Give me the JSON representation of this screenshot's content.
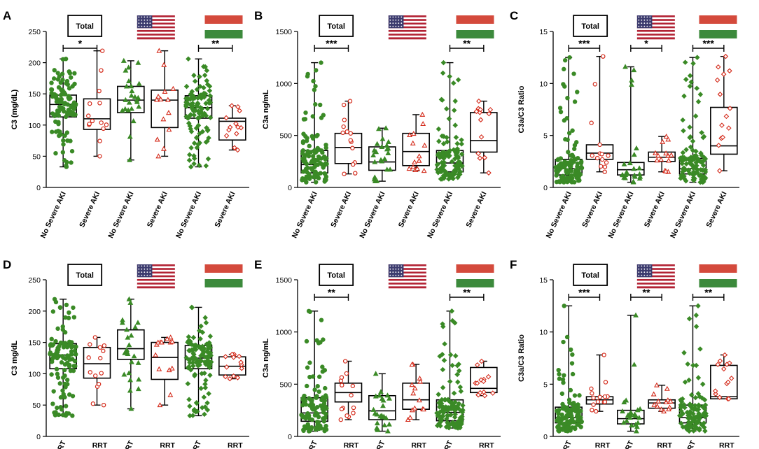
{
  "chart_data": [
    {
      "type": "box",
      "panel": "A",
      "ylabel": "C3 (mg/dL)",
      "ylim": [
        0,
        250
      ],
      "yticks": [
        0,
        50,
        100,
        150,
        200,
        250
      ],
      "categories": [
        "No Severe AKI",
        "Severe AKI",
        "No Severe AKI",
        "Severe AKI",
        "No Severe AKI",
        "Severe AKI"
      ],
      "groups": [
        "Total",
        "US",
        "Hungary"
      ],
      "boxes": [
        {
          "min": 33,
          "q1": 113,
          "median": 133,
          "q3": 148,
          "max": 206
        },
        {
          "min": 50,
          "q1": 93,
          "median": 110,
          "q3": 142,
          "max": 219
        },
        {
          "min": 44,
          "q1": 120,
          "median": 140,
          "q3": 162,
          "max": 203
        },
        {
          "min": 50,
          "q1": 96,
          "median": 140,
          "q3": 156,
          "max": 219
        },
        {
          "min": 33,
          "q1": 111,
          "median": 128,
          "q3": 147,
          "max": 206
        },
        {
          "min": 60,
          "q1": 76,
          "median": 106,
          "q3": 111,
          "max": 131
        }
      ],
      "significance": [
        {
          "from": 0,
          "to": 1,
          "label": "*"
        },
        {
          "from": 4,
          "to": 5,
          "label": "**"
        }
      ]
    },
    {
      "type": "box",
      "panel": "B",
      "ylabel": "C3a ng/mL",
      "ylim": [
        0,
        1500
      ],
      "yticks": [
        0,
        500,
        1000,
        1500
      ],
      "categories": [
        "No Severe AKI",
        "Severe AKI",
        "No Severe AKI",
        "Severe AKI",
        "No Severe AKI",
        "Severe AKI"
      ],
      "groups": [
        "Total",
        "US",
        "Hungary"
      ],
      "boxes": [
        {
          "min": 50,
          "q1": 140,
          "median": 220,
          "q3": 355,
          "max": 1200
        },
        {
          "min": 130,
          "q1": 230,
          "median": 385,
          "q3": 520,
          "max": 830
        },
        {
          "min": 60,
          "q1": 165,
          "median": 245,
          "q3": 390,
          "max": 570
        },
        {
          "min": 160,
          "q1": 210,
          "median": 345,
          "q3": 520,
          "max": 700
        },
        {
          "min": 80,
          "q1": 150,
          "median": 235,
          "q3": 355,
          "max": 1200
        },
        {
          "min": 140,
          "q1": 340,
          "median": 450,
          "q3": 720,
          "max": 830
        }
      ],
      "significance": [
        {
          "from": 0,
          "to": 1,
          "label": "***"
        },
        {
          "from": 4,
          "to": 5,
          "label": "**"
        }
      ]
    },
    {
      "type": "box",
      "panel": "C",
      "ylabel": "C3a/C3 Ratio",
      "ylim": [
        0,
        15
      ],
      "yticks": [
        0,
        5,
        10,
        15
      ],
      "categories": [
        "No Severe AKI",
        "Severe AKI",
        "No Severe AKI",
        "Severe AKI",
        "No Severe AKI",
        "Severe AKI"
      ],
      "groups": [
        "Total",
        "US",
        "Hungary"
      ],
      "boxes": [
        {
          "min": 0.5,
          "q1": 1.2,
          "median": 1.8,
          "q3": 2.7,
          "max": 12.5
        },
        {
          "min": 1.5,
          "q1": 2.7,
          "median": 3.3,
          "q3": 4.1,
          "max": 12.6
        },
        {
          "min": 0.5,
          "q1": 1.2,
          "median": 1.7,
          "q3": 2.4,
          "max": 11.6
        },
        {
          "min": 1.5,
          "q1": 2.5,
          "median": 2.9,
          "q3": 3.4,
          "max": 4.9
        },
        {
          "min": 0.5,
          "q1": 1.3,
          "median": 1.8,
          "q3": 2.8,
          "max": 12.5
        },
        {
          "min": 1.6,
          "q1": 3.2,
          "median": 4.0,
          "q3": 7.7,
          "max": 12.6
        }
      ],
      "significance": [
        {
          "from": 0,
          "to": 1,
          "label": "***"
        },
        {
          "from": 2,
          "to": 3,
          "label": "*"
        },
        {
          "from": 4,
          "to": 5,
          "label": "***"
        }
      ]
    },
    {
      "type": "box",
      "panel": "D",
      "ylabel": "C3 mg/dL",
      "ylim": [
        0,
        250
      ],
      "yticks": [
        0,
        50,
        100,
        150,
        200,
        250
      ],
      "categories": [
        "No RRT",
        "RRT",
        "No RRT",
        "RRT",
        "No RRT",
        "RRT"
      ],
      "groups": [
        "Total",
        "US",
        "Hungary"
      ],
      "boxes": [
        {
          "min": 33,
          "q1": 108,
          "median": 130,
          "q3": 148,
          "max": 219
        },
        {
          "min": 50,
          "q1": 93,
          "median": 116,
          "q3": 142,
          "max": 158
        },
        {
          "min": 44,
          "q1": 123,
          "median": 140,
          "q3": 170,
          "max": 219
        },
        {
          "min": 50,
          "q1": 91,
          "median": 126,
          "q3": 150,
          "max": 158
        },
        {
          "min": 33,
          "q1": 108,
          "median": 125,
          "q3": 145,
          "max": 206
        },
        {
          "min": 92,
          "q1": 98,
          "median": 112,
          "q3": 127,
          "max": 131
        }
      ],
      "significance": []
    },
    {
      "type": "box",
      "panel": "E",
      "ylabel": "C3a ng/mL",
      "ylim": [
        0,
        1500
      ],
      "yticks": [
        0,
        500,
        1000,
        1500
      ],
      "categories": [
        "No RRT",
        "RRT",
        "No RRT",
        "RRT",
        "No RRT",
        "RRT"
      ],
      "groups": [
        "Total",
        "US",
        "Hungary"
      ],
      "boxes": [
        {
          "min": 50,
          "q1": 145,
          "median": 225,
          "q3": 370,
          "max": 1200
        },
        {
          "min": 160,
          "q1": 330,
          "median": 420,
          "q3": 510,
          "max": 720
        },
        {
          "min": 50,
          "q1": 160,
          "median": 245,
          "q3": 390,
          "max": 600
        },
        {
          "min": 160,
          "q1": 260,
          "median": 350,
          "q3": 510,
          "max": 690
        },
        {
          "min": 80,
          "q1": 150,
          "median": 230,
          "q3": 350,
          "max": 1200
        },
        {
          "min": 390,
          "q1": 420,
          "median": 460,
          "q3": 660,
          "max": 720
        }
      ],
      "significance": [
        {
          "from": 0,
          "to": 1,
          "label": "**"
        },
        {
          "from": 4,
          "to": 5,
          "label": "**"
        }
      ]
    },
    {
      "type": "box",
      "panel": "F",
      "ylabel": "C3a/C3 Ratio",
      "ylim": [
        0,
        15
      ],
      "yticks": [
        0,
        5,
        10,
        15
      ],
      "categories": [
        "No RRT",
        "RRT",
        "No RRT",
        "RRT",
        "No RRT",
        "RRT"
      ],
      "groups": [
        "Total",
        "US",
        "Hungary"
      ],
      "boxes": [
        {
          "min": 0.5,
          "q1": 1.3,
          "median": 1.8,
          "q3": 2.8,
          "max": 12.5
        },
        {
          "min": 2.4,
          "q1": 3.1,
          "median": 3.5,
          "q3": 3.8,
          "max": 7.8
        },
        {
          "min": 0.5,
          "q1": 1.2,
          "median": 1.7,
          "q3": 2.5,
          "max": 11.6
        },
        {
          "min": 2.4,
          "q1": 2.7,
          "median": 3.2,
          "q3": 3.5,
          "max": 4.9
        },
        {
          "min": 0.5,
          "q1": 1.3,
          "median": 1.8,
          "q3": 3.0,
          "max": 12.5
        },
        {
          "min": 3.6,
          "q1": 3.6,
          "median": 3.8,
          "q3": 6.8,
          "max": 7.8
        }
      ],
      "significance": [
        {
          "from": 0,
          "to": 1,
          "label": "***"
        },
        {
          "from": 2,
          "to": 3,
          "label": "**"
        },
        {
          "from": 4,
          "to": 5,
          "label": "**"
        }
      ]
    }
  ],
  "legend": {
    "total_label": "Total"
  },
  "colors": {
    "green": "#3a8a26",
    "red": "#d42a1a",
    "flag_red": "#d44a3c",
    "flag_green": "#3c8a3c",
    "flag_blue": "#3c3b6e",
    "box": "#000000"
  }
}
